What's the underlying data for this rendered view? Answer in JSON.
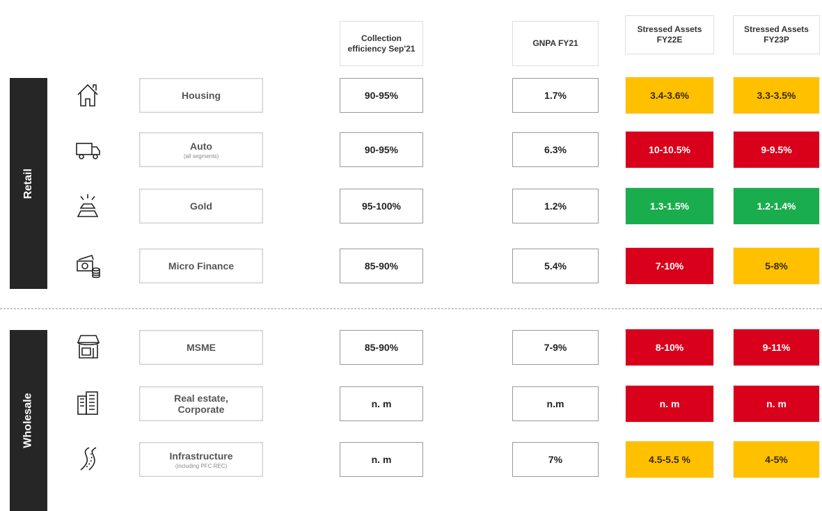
{
  "columns": [
    "Collection efficiency Sep'21",
    "GNPA FY21",
    "Stressed Assets FY22E",
    "Stressed Assets FY23P"
  ],
  "groups": [
    {
      "label": "Retail",
      "rows": [
        {
          "name": "Housing",
          "collection": "90-95%",
          "gnpa": "1.7%",
          "fy22e": "3.4-3.6%",
          "fy22e_color": "#ffc000",
          "fy23p": "3.3-3.5%",
          "fy23p_color": "#ffc000"
        },
        {
          "name": "Auto",
          "sub": "(all segments)",
          "collection": "90-95%",
          "gnpa": "6.3%",
          "fy22e": "10-10.5%",
          "fy22e_color": "#d9001b",
          "fy23p": "9-9.5%",
          "fy23p_color": "#d9001b"
        },
        {
          "name": "Gold",
          "collection": "95-100%",
          "gnpa": "1.2%",
          "fy22e": "1.3-1.5%",
          "fy22e_color": "#1aad4e",
          "fy23p": "1.2-1.4%",
          "fy23p_color": "#1aad4e"
        },
        {
          "name": "Micro Finance",
          "collection": "85-90%",
          "gnpa": "5.4%",
          "fy22e": "7-10%",
          "fy22e_color": "#d9001b",
          "fy23p": "5-8%",
          "fy23p_color": "#ffc000"
        }
      ]
    },
    {
      "label": "Wholesale",
      "rows": [
        {
          "name": "MSME",
          "collection": "85-90%",
          "gnpa": "7-9%",
          "fy22e": "8-10%",
          "fy22e_color": "#d9001b",
          "fy23p": "9-11%",
          "fy23p_color": "#d9001b"
        },
        {
          "name": "Real estate, Corporate",
          "collection": "n. m",
          "gnpa": "n.m",
          "fy22e": "n. m",
          "fy22e_color": "#d9001b",
          "fy23p": "n. m",
          "fy23p_color": "#d9001b"
        },
        {
          "name": "Infrastructure",
          "sub": "(including PFC REC)",
          "collection": "n. m",
          "gnpa": "7%",
          "fy22e": "4.5-5.5 %",
          "fy22e_color": "#ffc000",
          "fy23p": "4-5%",
          "fy23p_color": "#ffc000"
        }
      ]
    }
  ]
}
